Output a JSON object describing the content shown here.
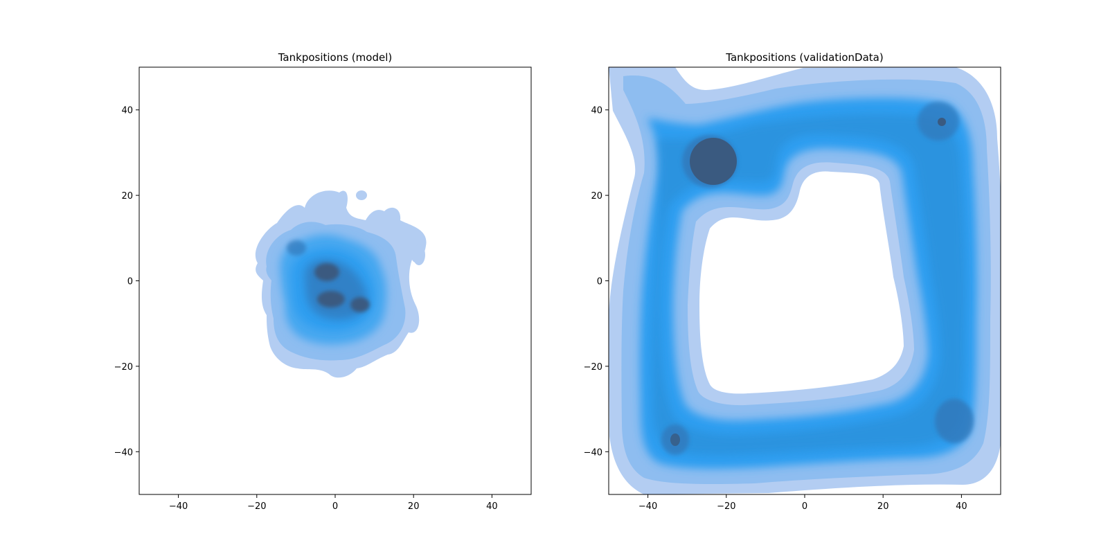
{
  "chart_data": [
    {
      "type": "heatmap",
      "subtype": "kde-density",
      "title": "Tankpositions (model)",
      "xlabel": "",
      "ylabel": "",
      "xlim": [
        -50,
        50
      ],
      "ylim": [
        -50,
        50
      ],
      "xticks": [
        -40,
        -20,
        0,
        20,
        40
      ],
      "yticks": [
        -40,
        -20,
        0,
        20,
        40
      ],
      "xtick_labels": [
        "−40",
        "−20",
        "0",
        "20",
        "40"
      ],
      "ytick_labels": [
        "−40",
        "−20",
        "0",
        "20",
        "40"
      ],
      "grid": false,
      "colors": {
        "low": "#b3cdf2",
        "mid": "#2e9ef0",
        "high": "#3a5a80"
      },
      "density_peaks": [
        {
          "x": -3,
          "y": 2,
          "weight": 1.0
        },
        {
          "x": -2,
          "y": -4,
          "weight": 1.0
        },
        {
          "x": 6,
          "y": -5,
          "weight": 0.9
        },
        {
          "x": -10,
          "y": 8,
          "weight": 0.6
        },
        {
          "x": 0,
          "y": 10,
          "weight": 0.45
        },
        {
          "x": -13,
          "y": -5,
          "weight": 0.6
        },
        {
          "x": 9,
          "y": 5,
          "weight": 0.5
        },
        {
          "x": -7,
          "y": -13,
          "weight": 0.5
        },
        {
          "x": 5,
          "y": -15,
          "weight": 0.45
        },
        {
          "x": -16,
          "y": 4,
          "weight": 0.4
        },
        {
          "x": 15,
          "y": -8,
          "weight": 0.35
        },
        {
          "x": 16,
          "y": 16,
          "weight": 0.3
        },
        {
          "x": 6,
          "y": 20,
          "weight": 0.25
        },
        {
          "x": 20,
          "y": 10,
          "weight": 0.3
        },
        {
          "x": -5,
          "y": 17,
          "weight": 0.35
        },
        {
          "x": -14,
          "y": -16,
          "weight": 0.35
        },
        {
          "x": 12,
          "y": -16,
          "weight": 0.3
        }
      ]
    },
    {
      "type": "heatmap",
      "subtype": "kde-density",
      "title": "Tankpositions (validationData)",
      "xlabel": "",
      "ylabel": "",
      "xlim": [
        -50,
        50
      ],
      "ylim": [
        -50,
        50
      ],
      "xticks": [
        -40,
        -20,
        0,
        20,
        40
      ],
      "yticks": [
        -40,
        -20,
        0,
        20,
        40
      ],
      "xtick_labels": [
        "−40",
        "−20",
        "0",
        "20",
        "40"
      ],
      "ytick_labels": [
        "−40",
        "−20",
        "0",
        "20",
        "40"
      ],
      "grid": false,
      "colors": {
        "low": "#b3cdf2",
        "mid": "#2e9ef0",
        "high": "#3a5a80"
      },
      "density_peaks": [
        {
          "x": -25,
          "y": 29,
          "weight": 1.0
        },
        {
          "x": 33,
          "y": 37,
          "weight": 0.85
        },
        {
          "x": 37,
          "y": -32,
          "weight": 0.85
        },
        {
          "x": -34,
          "y": -36,
          "weight": 0.8
        }
      ]
    }
  ]
}
